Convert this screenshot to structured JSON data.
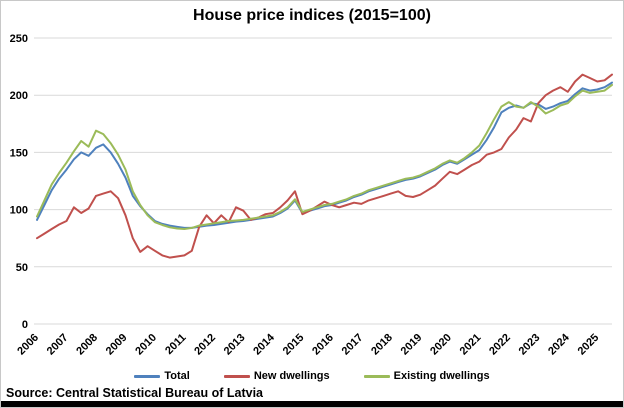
{
  "page": {
    "title": "House price indices (2015=100)",
    "source": "Source: Central Statistical Bureau of Latvia"
  },
  "chart_data": {
    "type": "line",
    "title": "House price indices (2015=100)",
    "frequency": "quarterly",
    "x_start": "2006Q1",
    "x_end": "2025Q3",
    "points_per_year": 4,
    "x_tick_labels": [
      "2006",
      "2007",
      "2008",
      "2009",
      "2010",
      "2011",
      "2012",
      "2013",
      "2014",
      "2015",
      "2016",
      "2017",
      "2018",
      "2019",
      "2020",
      "2021",
      "2022",
      "2023",
      "2024",
      "2025"
    ],
    "ylim": [
      0,
      250
    ],
    "y_ticks": [
      0,
      50,
      100,
      150,
      200,
      250
    ],
    "grid": "horizontal-only",
    "gridline_color": "#d9d9d9",
    "legend_position": "bottom",
    "series": [
      {
        "name": "Total",
        "color": "#4F81BD",
        "values": [
          91,
          104,
          117,
          127,
          135,
          144,
          150,
          147,
          154,
          157,
          150,
          140,
          128,
          112,
          103,
          96,
          90,
          87.5,
          86,
          85,
          84,
          84,
          85,
          86,
          86.5,
          87.5,
          88.5,
          89.5,
          90,
          91,
          92,
          93,
          94,
          97,
          101,
          108,
          97,
          99,
          101,
          103,
          104,
          106,
          108,
          111,
          113,
          116,
          118,
          120,
          122,
          124,
          126,
          127,
          129,
          132,
          135,
          139,
          142,
          140,
          144,
          148,
          152,
          161,
          172,
          185,
          189,
          191,
          189,
          193,
          192,
          188,
          190,
          193,
          195,
          201,
          206,
          204,
          205,
          207,
          211
        ]
      },
      {
        "name": "New dwellings",
        "color": "#C0504D",
        "values": [
          75,
          79,
          83,
          87,
          90,
          102,
          97,
          101,
          112,
          114,
          116,
          110,
          95,
          75,
          63,
          68,
          64,
          60,
          58,
          59,
          60,
          64,
          85,
          95,
          88,
          95,
          89,
          102,
          99,
          91,
          93,
          96,
          97,
          102,
          108,
          116,
          96,
          99,
          103,
          107,
          104,
          102,
          104,
          106,
          105,
          108,
          110,
          112,
          114,
          116,
          112,
          111,
          113,
          117,
          121,
          127,
          133,
          131,
          135,
          139,
          142,
          148,
          150,
          153,
          163,
          170,
          180,
          177,
          193,
          200,
          204,
          207,
          203,
          212,
          218,
          215,
          212,
          213,
          218
        ]
      },
      {
        "name": "Existing dwellings",
        "color": "#9BBB59",
        "values": [
          94,
          108,
          122,
          132,
          141,
          151,
          160,
          155,
          169,
          166,
          158,
          148,
          135,
          116,
          104,
          95,
          89,
          86.5,
          84.5,
          83.5,
          83,
          84,
          86,
          87,
          88,
          89,
          90,
          90.5,
          91,
          92,
          93,
          94,
          95,
          98,
          102,
          109,
          98,
          100,
          102,
          104,
          105,
          107,
          109,
          112,
          114,
          117,
          119,
          121,
          123,
          125,
          127,
          128,
          130,
          133,
          136,
          140,
          143,
          141,
          145,
          150,
          156,
          167,
          179,
          190,
          194,
          190,
          189,
          194,
          190,
          184,
          187,
          191,
          193,
          199,
          204,
          202,
          203,
          204,
          209
        ]
      }
    ]
  }
}
